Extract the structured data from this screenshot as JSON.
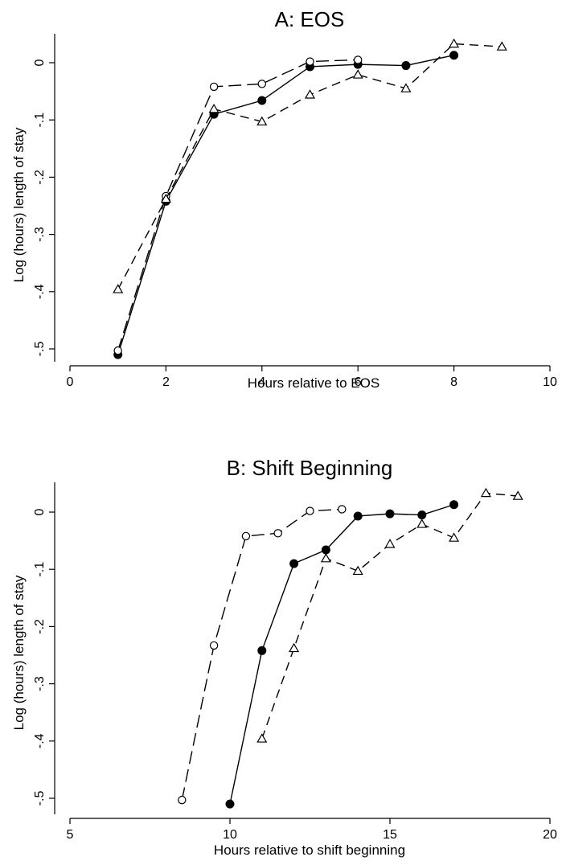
{
  "chart_data": [
    {
      "type": "line",
      "title": "A: EOS",
      "xlabel": "Hours relative to EOS",
      "ylabel": "Log (hours) length of stay",
      "xlim": [
        0,
        10
      ],
      "ylim": [
        -0.51,
        0.03
      ],
      "xticks": [
        "0",
        "2",
        "4",
        "6",
        "8",
        "10"
      ],
      "yticks": [
        "0",
        "-.1",
        "-.2",
        "-.3",
        "-.4",
        "-.5"
      ],
      "grid": false,
      "series": [
        {
          "marker": "filled-circle",
          "linestyle": "solid",
          "x": [
            1,
            2,
            3,
            4,
            5,
            6,
            7,
            8
          ],
          "y": [
            -0.51,
            -0.242,
            -0.09,
            -0.066,
            -0.007,
            -0.003,
            -0.005,
            0.013
          ]
        },
        {
          "marker": "hollow-circle",
          "linestyle": "long-dash",
          "x": [
            1,
            2,
            3,
            4,
            5,
            6
          ],
          "y": [
            -0.503,
            -0.233,
            -0.042,
            -0.037,
            0.002,
            0.005
          ]
        },
        {
          "marker": "hollow-triangle",
          "linestyle": "dash",
          "x": [
            1,
            2,
            3,
            4,
            5,
            6,
            7,
            8,
            9
          ],
          "y": [
            -0.396,
            -0.238,
            -0.081,
            -0.103,
            -0.056,
            -0.021,
            -0.045,
            0.033,
            0.028
          ]
        }
      ]
    },
    {
      "type": "line",
      "title": "B: Shift Beginning",
      "xlabel": "Hours relative to shift beginning",
      "ylabel": "Log (hours) length of stay",
      "xlim": [
        5,
        20
      ],
      "ylim": [
        -0.51,
        0.03
      ],
      "xticks": [
        "5",
        "10",
        "15",
        "20"
      ],
      "yticks": [
        "0",
        "-.1",
        "-.2",
        "-.3",
        "-.4",
        "-.5"
      ],
      "grid": false,
      "series": [
        {
          "marker": "filled-circle",
          "linestyle": "solid",
          "x": [
            10,
            11,
            12,
            13,
            14,
            15,
            16,
            17
          ],
          "y": [
            -0.51,
            -0.242,
            -0.09,
            -0.066,
            -0.007,
            -0.003,
            -0.005,
            0.013
          ]
        },
        {
          "marker": "hollow-circle",
          "linestyle": "long-dash",
          "x": [
            8.5,
            9.5,
            10.5,
            11.5,
            12.5,
            13.5
          ],
          "y": [
            -0.503,
            -0.233,
            -0.042,
            -0.037,
            0.002,
            0.005
          ]
        },
        {
          "marker": "hollow-triangle",
          "linestyle": "dash",
          "x": [
            11,
            12,
            13,
            14,
            15,
            16,
            17,
            18,
            19
          ],
          "y": [
            -0.396,
            -0.238,
            -0.081,
            -0.103,
            -0.056,
            -0.021,
            -0.045,
            0.033,
            0.028
          ]
        }
      ]
    }
  ]
}
